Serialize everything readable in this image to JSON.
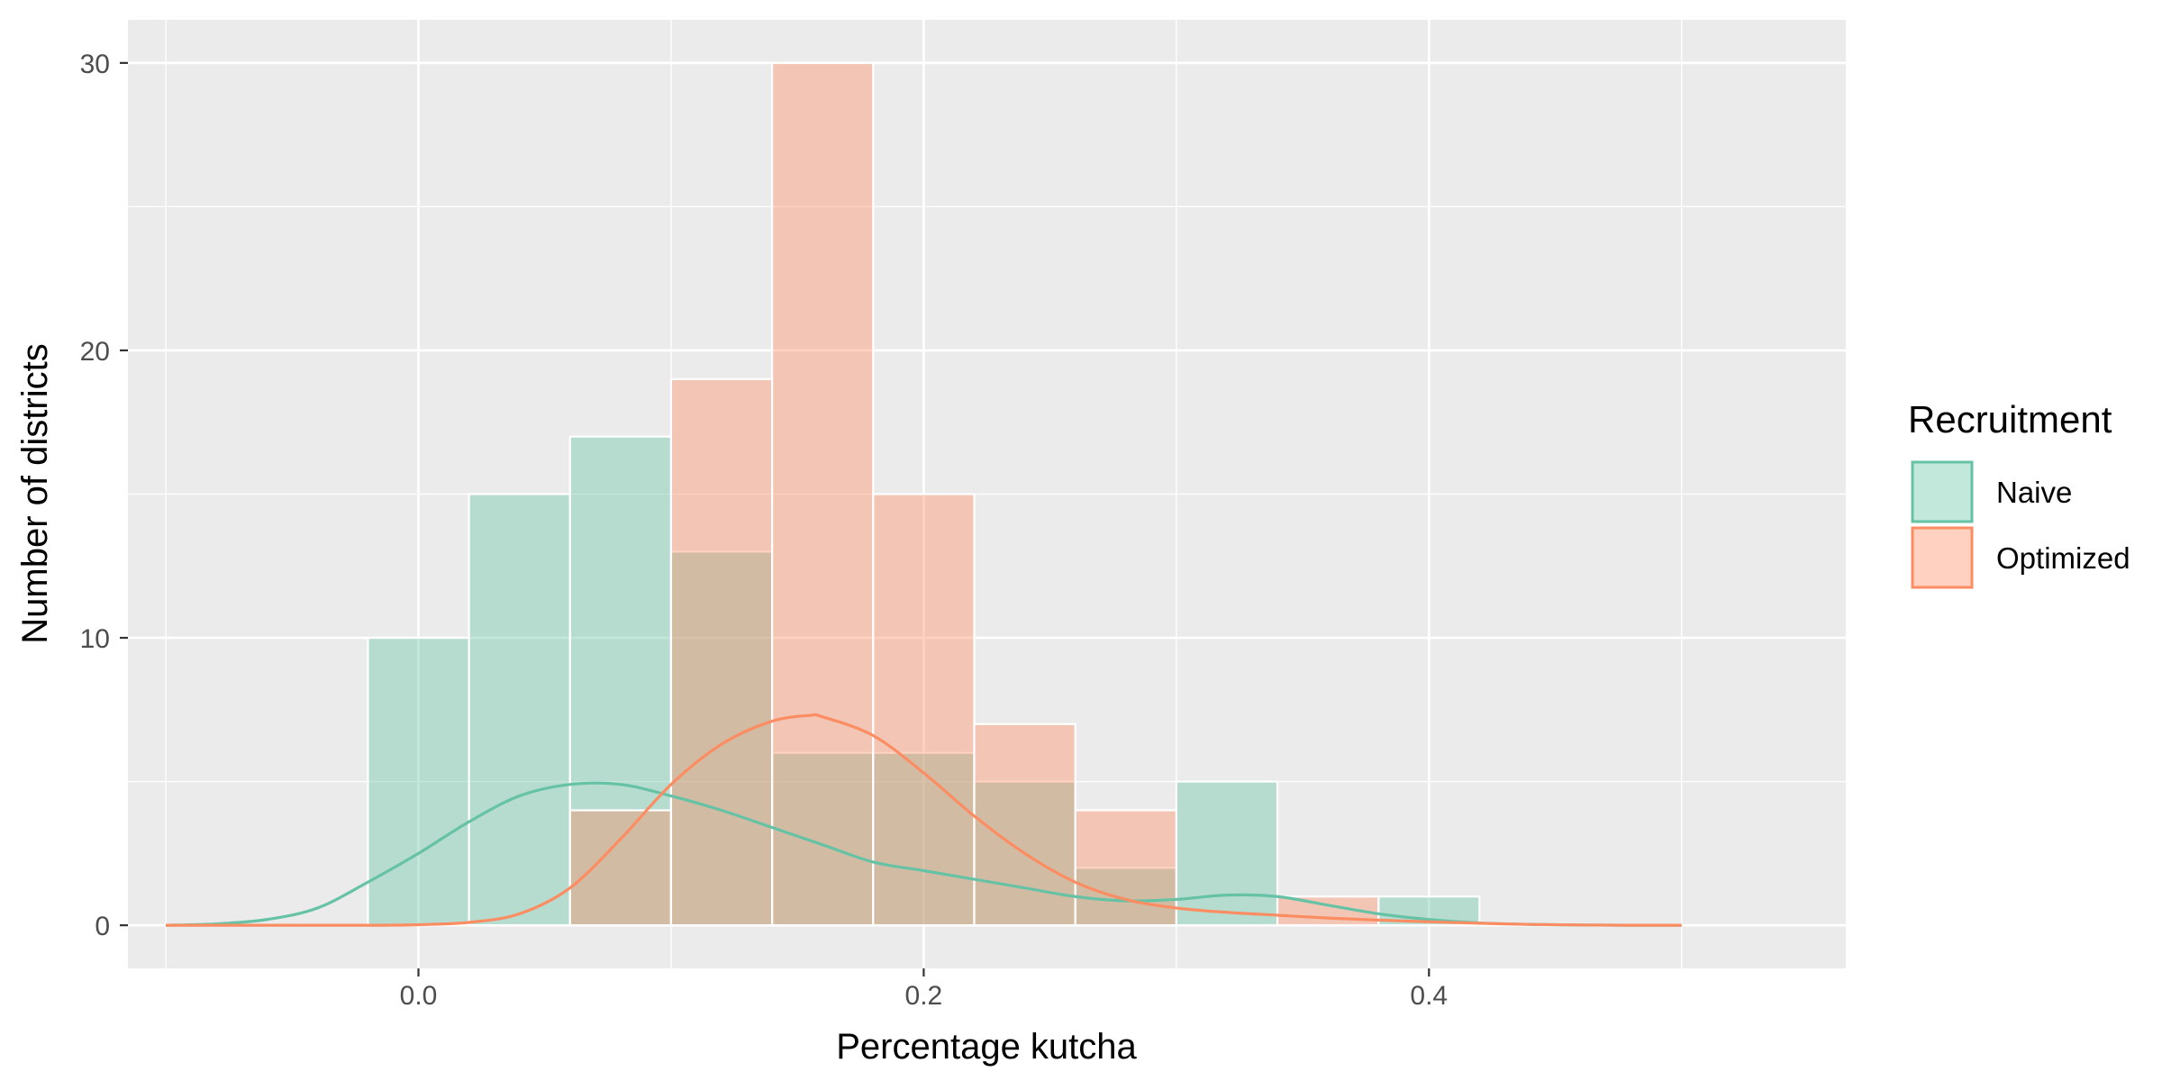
{
  "chart_data": {
    "type": "histogram",
    "xlabel": "Percentage kutcha",
    "ylabel": "Number of districts",
    "xlim": [
      -0.115,
      0.565
    ],
    "ylim": [
      -1.5,
      31.5
    ],
    "x_ticks": [
      0.0,
      0.2,
      0.4
    ],
    "x_tick_labels": [
      "0.0",
      "0.2",
      "0.4"
    ],
    "x_minor_ticks": [
      -0.1,
      0.1,
      0.3,
      0.5
    ],
    "y_ticks": [
      0,
      10,
      20,
      30
    ],
    "y_tick_labels": [
      "0",
      "10",
      "20",
      "30"
    ],
    "y_minor_ticks": [
      5,
      15,
      25
    ],
    "grid": true,
    "legend": {
      "title": "Recruitment",
      "position": "right",
      "entries": [
        "Naive",
        "Optimized"
      ]
    },
    "bin_edges": [
      -0.02,
      0.02,
      0.06,
      0.1,
      0.14,
      0.18,
      0.22,
      0.26,
      0.3,
      0.34,
      0.38,
      0.42
    ],
    "series": [
      {
        "name": "Naive",
        "fill": "#66c2a5",
        "line": "#66c2a5",
        "counts": [
          10,
          15,
          17,
          13,
          6,
          6,
          5,
          2,
          5,
          0,
          1
        ],
        "density_curve": {
          "x": [
            -0.1,
            -0.08,
            -0.06,
            -0.04,
            -0.02,
            0.0,
            0.02,
            0.04,
            0.06,
            0.08,
            0.1,
            0.12,
            0.14,
            0.16,
            0.18,
            0.2,
            0.22,
            0.24,
            0.26,
            0.28,
            0.3,
            0.32,
            0.34,
            0.36,
            0.38,
            0.4,
            0.42,
            0.44,
            0.46,
            0.48,
            0.5
          ],
          "y": [
            0.0,
            0.05,
            0.2,
            0.6,
            1.5,
            2.5,
            3.6,
            4.5,
            4.9,
            4.9,
            4.5,
            4.0,
            3.4,
            2.8,
            2.2,
            1.9,
            1.6,
            1.3,
            1.0,
            0.85,
            0.9,
            1.05,
            1.0,
            0.7,
            0.4,
            0.2,
            0.08,
            0.03,
            0.01,
            0.0,
            0.0
          ]
        }
      },
      {
        "name": "Optimized",
        "fill": "#fc8d62",
        "line": "#fc8d62",
        "counts": [
          0,
          0,
          4,
          19,
          30,
          15,
          7,
          4,
          0,
          1,
          0
        ],
        "density_curve": {
          "x": [
            -0.1,
            -0.06,
            -0.02,
            0.0,
            0.02,
            0.04,
            0.06,
            0.08,
            0.1,
            0.12,
            0.14,
            0.155,
            0.16,
            0.18,
            0.2,
            0.22,
            0.24,
            0.26,
            0.28,
            0.3,
            0.32,
            0.34,
            0.36,
            0.38,
            0.4,
            0.42,
            0.44,
            0.46,
            0.48,
            0.5
          ],
          "y": [
            0.0,
            0.0,
            0.0,
            0.02,
            0.1,
            0.4,
            1.3,
            3.0,
            4.9,
            6.3,
            7.1,
            7.3,
            7.25,
            6.6,
            5.3,
            3.8,
            2.5,
            1.5,
            0.9,
            0.6,
            0.45,
            0.35,
            0.25,
            0.18,
            0.12,
            0.07,
            0.03,
            0.01,
            0.0,
            0.0
          ]
        }
      }
    ]
  }
}
